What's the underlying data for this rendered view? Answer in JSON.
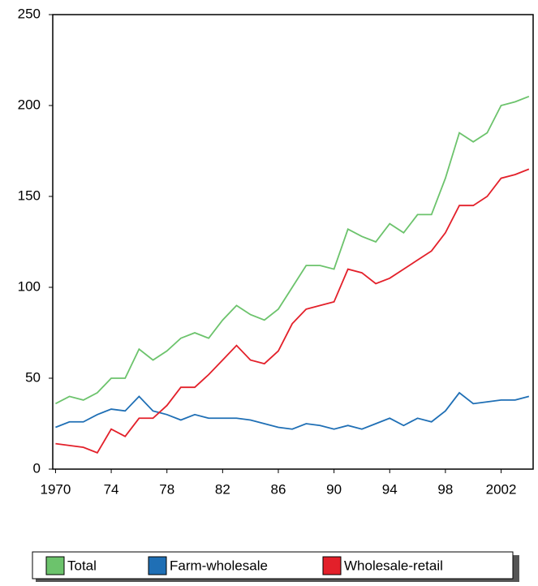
{
  "chart_data": {
    "type": "line",
    "x": [
      1970,
      1971,
      1972,
      1973,
      1974,
      1975,
      1976,
      1977,
      1978,
      1979,
      1980,
      1981,
      1982,
      1983,
      1984,
      1985,
      1986,
      1987,
      1988,
      1989,
      1990,
      1991,
      1992,
      1993,
      1994,
      1995,
      1996,
      1997,
      1998,
      1999,
      2000,
      2001,
      2002,
      2003,
      2004
    ],
    "series": [
      {
        "name": "Total",
        "color": "#6cc36c",
        "values": [
          36,
          40,
          38,
          42,
          50,
          50,
          66,
          60,
          65,
          72,
          75,
          72,
          82,
          90,
          85,
          82,
          88,
          100,
          112,
          112,
          110,
          132,
          128,
          125,
          135,
          130,
          140,
          140,
          160,
          185,
          180,
          185,
          200,
          202,
          205
        ]
      },
      {
        "name": "Farm-wholesale",
        "color": "#1f6fb5",
        "values": [
          23,
          26,
          26,
          30,
          33,
          32,
          40,
          32,
          30,
          27,
          30,
          28,
          28,
          28,
          27,
          25,
          23,
          22,
          25,
          24,
          22,
          24,
          22,
          25,
          28,
          24,
          28,
          26,
          32,
          42,
          36,
          37,
          38,
          38,
          40
        ]
      },
      {
        "name": "Wholesale-retail",
        "color": "#e3202a",
        "values": [
          14,
          13,
          12,
          9,
          22,
          18,
          28,
          28,
          35,
          45,
          45,
          52,
          60,
          68,
          60,
          58,
          65,
          80,
          88,
          90,
          92,
          110,
          108,
          102,
          105,
          110,
          115,
          120,
          130,
          145,
          145,
          150,
          160,
          162,
          165
        ]
      }
    ],
    "xlim": [
      1969.8,
      2004.3
    ],
    "xticks": [
      1970,
      {
        "value": 1974,
        "label": "74"
      },
      {
        "value": 1978,
        "label": "78"
      },
      {
        "value": 1982,
        "label": "82"
      },
      {
        "value": 1986,
        "label": "86"
      },
      {
        "value": 1990,
        "label": "90"
      },
      {
        "value": 1994,
        "label": "94"
      },
      {
        "value": 1998,
        "label": "98"
      },
      2002
    ],
    "ylim": [
      0,
      250
    ],
    "yticks": [
      0,
      50,
      100,
      150,
      200,
      250
    ],
    "grid": false,
    "legend": "bottom"
  }
}
